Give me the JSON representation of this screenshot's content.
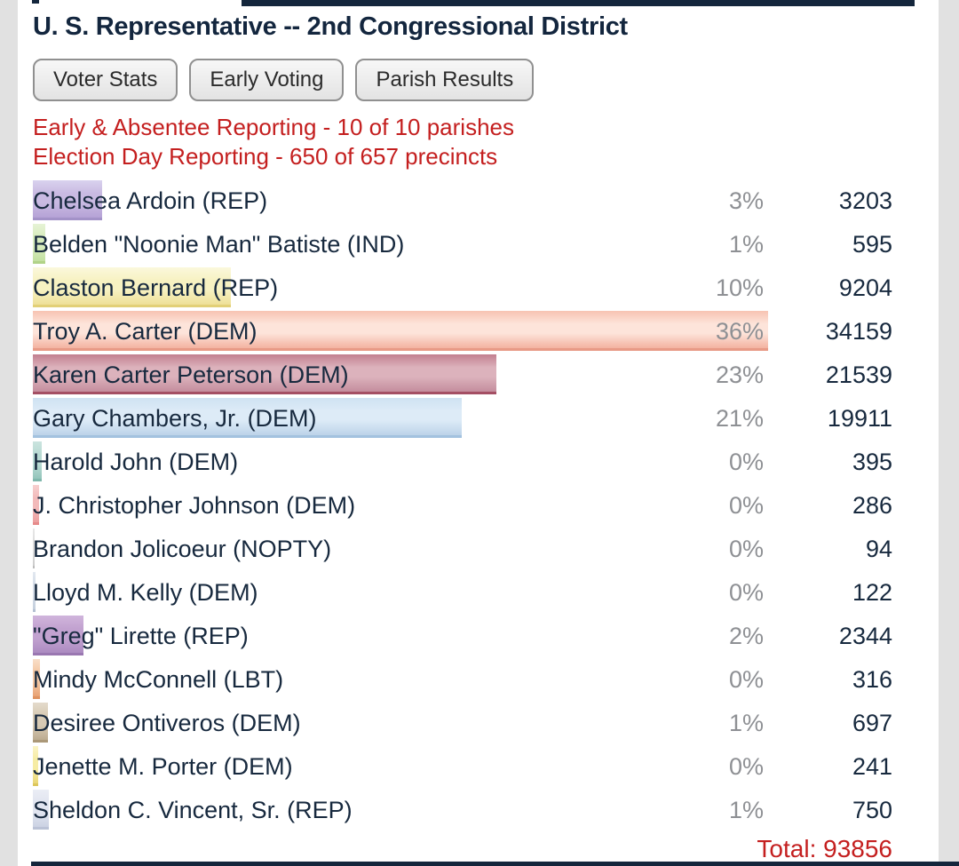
{
  "header": {
    "title": "U. S. Representative -- 2nd Congressional District"
  },
  "toolbar": {
    "buttons": [
      {
        "label": "Voter Stats"
      },
      {
        "label": "Early Voting"
      },
      {
        "label": "Parish Results"
      }
    ]
  },
  "reporting": {
    "early_absentee": "Early & Absentee Reporting - 10 of 10 parishes",
    "election_day": "Election Day Reporting - 650 of 657 precincts"
  },
  "results": {
    "candidates": [
      {
        "name": "Chelsea Ardoin (REP)",
        "percent": "3%",
        "votes": 3203,
        "bar": {
          "from": "#d9d2ee",
          "mid": "#c9bae2",
          "to": "#b5a2d6",
          "edge": "#a392c8"
        }
      },
      {
        "name": "Belden \"Noonie Man\" Batiste (IND)",
        "percent": "1%",
        "votes": 595,
        "bar": {
          "from": "#e6f3d6",
          "mid": "#d8ecbe",
          "to": "#c2e0a0",
          "edge": "#b1d388"
        }
      },
      {
        "name": "Claston Bernard (REP)",
        "percent": "10%",
        "votes": 9204,
        "bar": {
          "from": "#fbf8dc",
          "mid": "#f7f2c2",
          "to": "#eee098",
          "edge": "#e2d077"
        }
      },
      {
        "name": "Troy A. Carter (DEM)",
        "percent": "36%",
        "votes": 34159,
        "bar": {
          "from": "#f7c3b2",
          "mid": "#fde4da",
          "to": "#f3b2a0",
          "edge": "#e89a86"
        }
      },
      {
        "name": "Karen Carter Peterson (DEM)",
        "percent": "23%",
        "votes": 21539,
        "bar": {
          "from": "#c27f90",
          "mid": "#dcb2bc",
          "to": "#c48d9d",
          "edge": "#a44f64"
        }
      },
      {
        "name": "Gary Chambers, Jr. (DEM)",
        "percent": "21%",
        "votes": 19911,
        "bar": {
          "from": "#cfe2f2",
          "mid": "#ddebf7",
          "to": "#bcd3e9",
          "edge": "#a3c2df"
        }
      },
      {
        "name": "Harold John (DEM)",
        "percent": "0%",
        "votes": 395,
        "bar": {
          "from": "#cbe4df",
          "mid": "#b8dad3",
          "to": "#93c5bb",
          "edge": "#7fb7ac"
        }
      },
      {
        "name": "J. Christopher Johnson (DEM)",
        "percent": "0%",
        "votes": 286,
        "bar": {
          "from": "#f7d0d0",
          "mid": "#f2baba",
          "to": "#ec9f9f",
          "edge": "#e68b8b"
        }
      },
      {
        "name": "Brandon Jolicoeur (NOPTY)",
        "percent": "0%",
        "votes": 94,
        "bar": {
          "from": "#e8e8e8",
          "mid": "#dddddd",
          "to": "#cccccc",
          "edge": "#bbbbbb"
        }
      },
      {
        "name": "Lloyd M. Kelly (DEM)",
        "percent": "0%",
        "votes": 122,
        "bar": {
          "from": "#e2e8f0",
          "mid": "#d5dde8",
          "to": "#c4cfdd",
          "edge": "#b3c0d2"
        }
      },
      {
        "name": "\"Greg\" Lirette (REP)",
        "percent": "2%",
        "votes": 2344,
        "bar": {
          "from": "#d0b5dc",
          "mid": "#c2a2d0",
          "to": "#ac8bc1",
          "edge": "#9a77b1"
        }
      },
      {
        "name": "Mindy McConnell (LBT)",
        "percent": "0%",
        "votes": 316,
        "bar": {
          "from": "#f9dfc9",
          "mid": "#f4c8a4",
          "to": "#e8a274",
          "edge": "#de9260"
        }
      },
      {
        "name": "Desiree Ontiveros (DEM)",
        "percent": "1%",
        "votes": 697,
        "bar": {
          "from": "#e4dbcc",
          "mid": "#d7cab4",
          "to": "#bcab90",
          "edge": "#ab9878"
        }
      },
      {
        "name": "Jenette M. Porter (DEM)",
        "percent": "0%",
        "votes": 241,
        "bar": {
          "from": "#fbf4c6",
          "mid": "#f6eca4",
          "to": "#e9d675",
          "edge": "#dcc65c"
        }
      },
      {
        "name": "Sheldon C. Vincent, Sr. (REP)",
        "percent": "1%",
        "votes": 750,
        "bar": {
          "from": "#ebedf5",
          "mid": "#e1e5f0",
          "to": "#cbd2e3",
          "edge": "#bac2d6"
        }
      }
    ],
    "total_label": "Total: 93856"
  },
  "colors": {
    "accent_navy": "#14263c",
    "alert_red": "#c41f1f",
    "percent_gray": "#8e9094"
  }
}
